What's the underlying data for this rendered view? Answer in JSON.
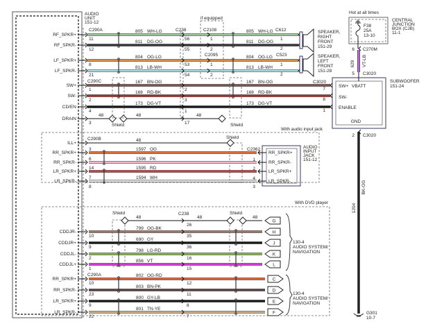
{
  "audio_unit": {
    "lines": [
      "AUDIO",
      "UNIT",
      "151-12"
    ]
  },
  "section1": {
    "connectors": {
      "unit": "C290A",
      "unit_sub": "C290C",
      "c238": "C238",
      "if_equipped": "if equipped",
      "c2108": "C2108",
      "c2095": "C2095",
      "c612": "C612",
      "c523": "C523",
      "c3020": "C3020",
      "shield": "Shield"
    },
    "rows": [
      {
        "label": "RF_SPKR+",
        "pin": "11",
        "circuit": "805",
        "color_code": "WH-LG",
        "mid_pin": "56",
        "opt_pin": "1",
        "far_pin": "1",
        "color": "#9cc79c"
      },
      {
        "label": "RF_SPKR-",
        "pin": "12",
        "circuit": "811",
        "color_code": "DG-OG",
        "mid_pin": "55",
        "opt_pin": "2",
        "far_pin": "2",
        "color": "#3a3a3a"
      },
      {
        "label": "LF_SPKR+",
        "pin": "8",
        "circuit": "804",
        "color_code": "OG-LG",
        "mid_pin": "53",
        "opt_pin": "1",
        "far_pin": "1",
        "color": "#d4924e"
      },
      {
        "label": "LF_SPKR-",
        "pin": "21",
        "circuit": "813",
        "color_code": "LB-WH",
        "mid_pin": "54",
        "opt_pin": "2",
        "far_pin": "2",
        "color": "#a9dbe3"
      },
      {
        "label": "SW+",
        "pin": "1",
        "circuit": "167",
        "color_code": "BN-OG",
        "mid_pin": "2",
        "far_pin": "7",
        "color": "#7b5650"
      },
      {
        "label": "SW-",
        "pin": "2",
        "circuit": "168",
        "color_code": "RD-BK",
        "mid_pin": "3",
        "far_pin": "8",
        "color": "#b02a2a"
      },
      {
        "label": "CD/EN",
        "pin": "4",
        "circuit": "173",
        "color_code": "DG-VT",
        "mid_pin": "1",
        "far_pin": "1",
        "color": "#1a1a1a"
      },
      {
        "label": "DRAIN",
        "pin": "3",
        "circuit": "48",
        "color_code": "",
        "mid_pin": "17",
        "color": "#111111"
      }
    ],
    "speaker_rf": {
      "lines": [
        "SPEAKER,",
        "RIGHT",
        "FRONT",
        "151-29"
      ]
    },
    "speaker_lf": {
      "lines": [
        "SPEAKER,",
        "LEFT",
        "FRONT",
        "151-28"
      ]
    }
  },
  "power": {
    "hot": "Hot at all times",
    "cjb_lines": [
      "CENTRAL",
      "JUNCTION",
      "BOX (CJB)",
      "11-1"
    ],
    "fuse_lines": [
      "F38",
      "25A",
      "13-10"
    ],
    "c270m": "C270M",
    "c270m_pin": "6",
    "circuit": "629",
    "color_code": "VT-LB",
    "wire_color": "#b86cc9",
    "c3020": "C3020",
    "c3020_pin": "5"
  },
  "subwoofer": {
    "lines": [
      "SUBWOOFER",
      "151-24"
    ],
    "pins": [
      "SW+",
      "VBATT",
      "SW-",
      "ENABLE",
      "GND"
    ],
    "gnd_connector": "C3020",
    "gnd_pin": "2",
    "gnd_circuit": "1204",
    "gnd_color_code": "BK-OG",
    "ground": [
      "G301",
      "10-7"
    ]
  },
  "section2": {
    "title": "With audio input jack",
    "unit_connector": "C290B",
    "jack_connector": "C2362",
    "shield": "Shield",
    "rows": [
      {
        "label": "ILL+",
        "pin": "",
        "circuit": "48",
        "color_code": "",
        "color": "#111111"
      },
      {
        "label": "RR_SPKR+",
        "pin": "3",
        "circuit": "1597",
        "color_code": "OG",
        "jack_label": "RR_SPKR+",
        "jack_pin": "",
        "color": "#d8703a"
      },
      {
        "label": "RR_SPKR-",
        "pin": "6",
        "circuit": "1596",
        "color_code": "PK",
        "jack_label": "RR_SPKR-",
        "jack_pin": "1",
        "color": "#f0b8c8"
      },
      {
        "label": "LR_SPKR+",
        "pin": "14",
        "circuit": "1595",
        "color_code": "RD",
        "jack_label": "LR_SPKR+",
        "jack_pin": "2",
        "color": "#d83a3a"
      },
      {
        "label": "LR_SPKR-",
        "pin": "7",
        "circuit": "1594",
        "color_code": "WH",
        "jack_label": "LR_SPKR-",
        "jack_pin": "4",
        "color": "#e8e8e8"
      }
    ],
    "extra_pins": {
      "unit": "8",
      "jack": "3"
    },
    "jack_lines": [
      "AUDIO",
      "INPUT",
      "JACK",
      "151-12"
    ]
  },
  "section3": {
    "title": "With DVD player",
    "c238": "C238",
    "unit_connector": "C290A",
    "shield": "Shield",
    "drain": {
      "circuit": "48",
      "mid_pin": "26",
      "pin_letter": "G"
    },
    "rows": [
      {
        "label": "CDDJR-",
        "pin": "10",
        "circuit": "799",
        "color_code": "OG-BK",
        "mid_pin": "35",
        "letter": "H",
        "color": "#a0786a"
      },
      {
        "label": "CDDJR+",
        "pin": "9",
        "circuit": "690",
        "color_code": "GY",
        "mid_pin": "36",
        "letter": "J",
        "color": "#1a1a1a"
      },
      {
        "label": "CDDJL-",
        "pin": "2",
        "circuit": "798",
        "color_code": "LG-RD",
        "mid_pin": "16",
        "letter": "K",
        "color": "#86b84a"
      },
      {
        "label": "CDDJL+",
        "pin": "1",
        "circuit": "856",
        "color_code": "VT",
        "mid_pin": "15",
        "letter": "L",
        "color": "#d43ad4"
      },
      {
        "label": "RR_SPKR+",
        "pin": "10",
        "circuit": "802",
        "color_code": "OG-RD",
        "mid_pin": "12",
        "letter": "C",
        "color": "#e0603a"
      },
      {
        "label": "RR_SPKR-",
        "pin": "23",
        "circuit": "803",
        "color_code": "BN-PK",
        "mid_pin": "11",
        "letter": "D",
        "color": "#5a4444"
      },
      {
        "label": "LR_SPKR+",
        "pin": "9",
        "circuit": "800",
        "color_code": "GY-LB",
        "mid_pin": "8",
        "letter": "E",
        "color": "#1a1a1a"
      },
      {
        "label": "LR_SPKR-",
        "pin": "22",
        "circuit": "801",
        "color_code": "TN-YE",
        "mid_pin": "7",
        "letter": "F",
        "color": "#c8b08a"
      }
    ],
    "nav_lines": [
      "130-4",
      "AUDIO SYSTEM/",
      "NAVIGATION"
    ]
  }
}
